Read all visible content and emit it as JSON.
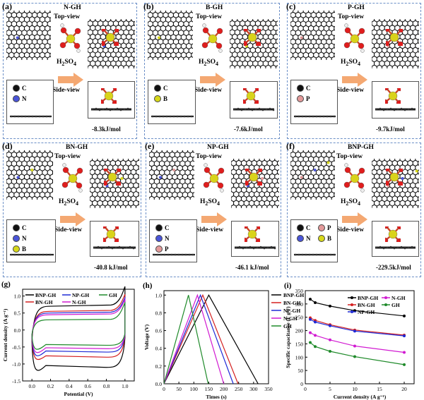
{
  "panels": [
    {
      "label": "(a)",
      "title": "N-GH",
      "top_view": "Top-view",
      "side_view": "Side-view",
      "acid": "H",
      "acid_sub": "2",
      "acid_tail": "SO",
      "acid_sub2": "4",
      "energy": "-8.3kJ/mol",
      "legend": [
        {
          "sym": "C",
          "color": "#111111"
        },
        {
          "sym": "N",
          "color": "#4a55d8"
        }
      ]
    },
    {
      "label": "(b)",
      "title": "B-GH",
      "top_view": "Top-view",
      "side_view": "Side-view",
      "acid": "H",
      "acid_sub": "2",
      "acid_tail": "SO",
      "acid_sub2": "4",
      "energy": "-7.6kJ/mol",
      "legend": [
        {
          "sym": "C",
          "color": "#111111"
        },
        {
          "sym": "B",
          "color": "#d7d81a"
        }
      ]
    },
    {
      "label": "(c)",
      "title": "P-GH",
      "top_view": "Top-view",
      "side_view": "Side-view",
      "acid": "H",
      "acid_sub": "2",
      "acid_tail": "SO",
      "acid_sub2": "4",
      "energy": "-9.7kJ/mol",
      "legend": [
        {
          "sym": "C",
          "color": "#111111"
        },
        {
          "sym": "P",
          "color": "#e39a9a"
        }
      ]
    },
    {
      "label": "(d)",
      "title": "BN-GH",
      "top_view": "Top-view",
      "side_view": "Side-view",
      "acid": "H",
      "acid_sub": "2",
      "acid_tail": "SO",
      "acid_sub2": "4",
      "energy": "-40.8 kJ/mol",
      "legend": [
        {
          "sym": "C",
          "color": "#111111"
        },
        {
          "sym": "N",
          "color": "#4a55d8"
        },
        {
          "sym": "B",
          "color": "#d7d81a"
        }
      ]
    },
    {
      "label": "(e)",
      "title": "NP-GH",
      "top_view": "Top-view",
      "side_view": "Side-view",
      "acid": "H",
      "acid_sub": "2",
      "acid_tail": "SO",
      "acid_sub2": "4",
      "energy": "-46.1 kJ/mol",
      "legend": [
        {
          "sym": "C",
          "color": "#111111"
        },
        {
          "sym": "N",
          "color": "#4a55d8"
        },
        {
          "sym": "P",
          "color": "#e39a9a"
        }
      ]
    },
    {
      "label": "(f)",
      "title": "BNP-GH",
      "top_view": "Top-view",
      "side_view": "Side-view",
      "acid": "H",
      "acid_sub": "2",
      "acid_tail": "SO",
      "acid_sub2": "4",
      "energy": "-229.5kJ/mol",
      "legend": [
        {
          "sym": "C",
          "color": "#111111"
        },
        {
          "sym": "P",
          "color": "#e39a9a"
        },
        {
          "sym": "N",
          "color": "#4a55d8"
        },
        {
          "sym": "B",
          "color": "#d7d81a"
        }
      ]
    }
  ],
  "chart_data": [
    {
      "label": "(g)",
      "type": "line",
      "xlabel": "Potential (V)",
      "ylabel": "Current density (A g⁻¹)",
      "xlim": [
        -0.1,
        1.1
      ],
      "ylim": [
        -1.5,
        1.2
      ],
      "xticks": [
        "0.0",
        "0.2",
        "0.4",
        "0.6",
        "0.8",
        "1.0"
      ],
      "yticks": [
        "-1.5",
        "-1.0",
        "-0.5",
        "0.0",
        "0.5",
        "1.0"
      ],
      "legend": [
        {
          "name": "BNP-GH",
          "color": "#000000"
        },
        {
          "name": "NP-GH",
          "color": "#1f2ad6"
        },
        {
          "name": "GH",
          "color": "#1f8a2a"
        },
        {
          "name": "BN-GH",
          "color": "#d42020"
        },
        {
          "name": "N-GH",
          "color": "#d11ad1"
        }
      ],
      "series": [
        {
          "name": "BNP-GH",
          "color": "#000000",
          "upper": 0.7,
          "lower": -1.1,
          "top_end": 1.28,
          "bot_end": -1.3
        },
        {
          "name": "BN-GH",
          "color": "#d42020",
          "upper": 0.55,
          "lower": -0.8,
          "top_end": 1.05,
          "bot_end": -0.95
        },
        {
          "name": "NP-GH",
          "color": "#1f2ad6",
          "upper": 0.5,
          "lower": -0.65,
          "top_end": 0.95,
          "bot_end": -0.85
        },
        {
          "name": "N-GH",
          "color": "#d11ad1",
          "upper": 0.45,
          "lower": -0.55,
          "top_end": 0.9,
          "bot_end": -0.75
        },
        {
          "name": "GH",
          "color": "#1f8a2a",
          "upper": 0.3,
          "lower": -0.45,
          "top_end": 0.8,
          "bot_end": -0.65
        }
      ]
    },
    {
      "label": "(h)",
      "type": "line",
      "xlabel": "Times (s)",
      "ylabel": "Voltage (V)",
      "xlim": [
        0,
        350
      ],
      "ylim": [
        0,
        1.05
      ],
      "xticks": [
        "0",
        "50",
        "100",
        "150",
        "200",
        "250",
        "300",
        "350"
      ],
      "yticks": [
        "0.0",
        "0.2",
        "0.4",
        "0.6",
        "0.8",
        "1.0"
      ],
      "series": [
        {
          "name": "BNP-GH",
          "color": "#000000",
          "peak": 150,
          "end": 315
        },
        {
          "name": "BN-GH",
          "color": "#d42020",
          "peak": 130,
          "end": 248
        },
        {
          "name": "NP-GH",
          "color": "#1f2ad6",
          "peak": 122,
          "end": 232
        },
        {
          "name": "N-GH",
          "color": "#d11ad1",
          "peak": 112,
          "end": 200
        },
        {
          "name": "GH",
          "color": "#1f8a2a",
          "peak": 82,
          "end": 148
        }
      ]
    },
    {
      "label": "(i)",
      "type": "line",
      "xlabel": "Current density (A g⁻¹)",
      "ylabel": "Specific capacitance (F g⁻¹)",
      "xlim": [
        0,
        22
      ],
      "ylim": [
        0,
        350
      ],
      "xticks": [
        "0",
        "5",
        "10",
        "15",
        "20"
      ],
      "yticks": [
        "0",
        "50",
        "100",
        "150",
        "200",
        "250",
        "300",
        "350"
      ],
      "x": [
        1,
        2,
        5,
        10,
        20
      ],
      "legend": [
        {
          "name": "BNP-GH",
          "color": "#000000"
        },
        {
          "name": "N-GH",
          "color": "#d11ad1"
        },
        {
          "name": "BN-GH",
          "color": "#d42020"
        },
        {
          "name": "GH",
          "color": "#1f8a2a"
        },
        {
          "name": "NP-GH",
          "color": "#1f2ad6"
        }
      ],
      "series": [
        {
          "name": "BNP-GH",
          "color": "#000000",
          "values": [
            318,
            305,
            292,
            275,
            255
          ]
        },
        {
          "name": "BN-GH",
          "color": "#d42020",
          "values": [
            248,
            238,
            222,
            202,
            183
          ]
        },
        {
          "name": "NP-GH",
          "color": "#1f2ad6",
          "values": [
            242,
            232,
            218,
            198,
            180
          ]
        },
        {
          "name": "N-GH",
          "color": "#d11ad1",
          "values": [
            192,
            182,
            165,
            142,
            118
          ]
        },
        {
          "name": "GH",
          "color": "#1f8a2a",
          "values": [
            155,
            140,
            122,
            102,
            72
          ]
        }
      ]
    }
  ]
}
